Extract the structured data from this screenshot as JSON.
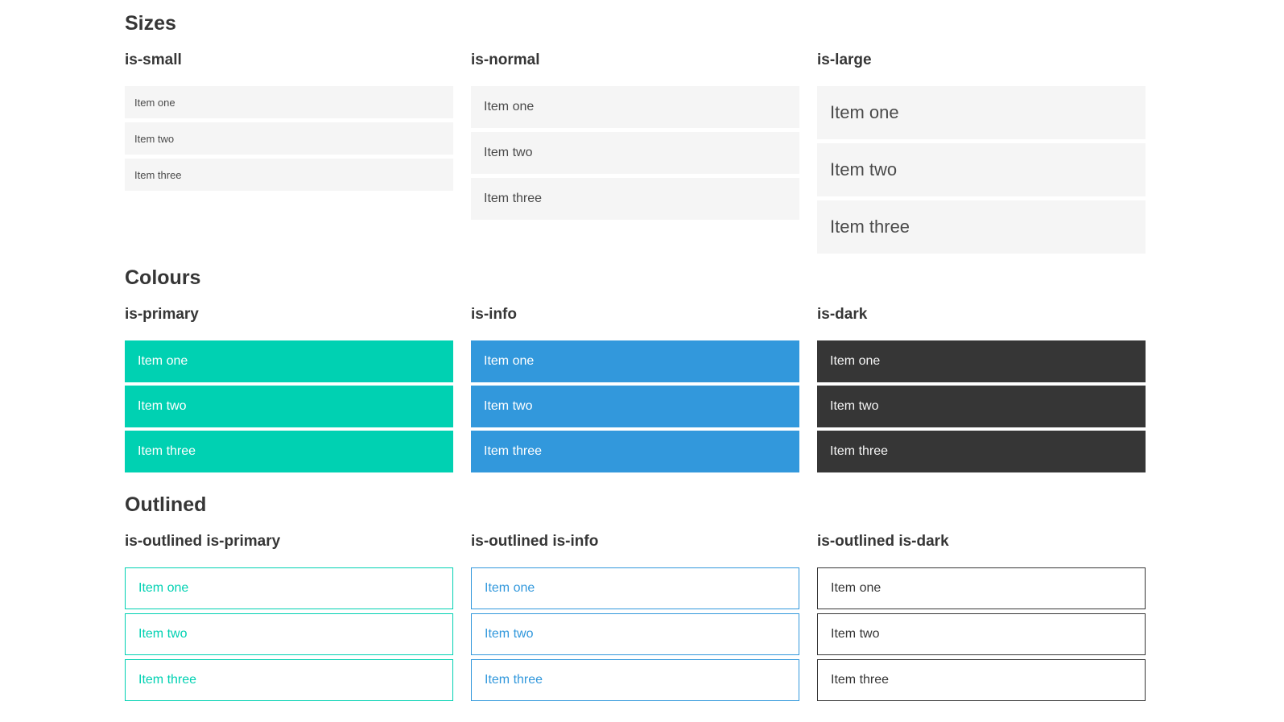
{
  "sections": [
    {
      "title": "Sizes",
      "columns": [
        {
          "heading": "is-small",
          "items": [
            "Item one",
            "Item two",
            "Item three"
          ]
        },
        {
          "heading": "is-normal",
          "items": [
            "Item one",
            "Item two",
            "Item three"
          ]
        },
        {
          "heading": "is-large",
          "items": [
            "Item one",
            "Item two",
            "Item three"
          ]
        }
      ]
    },
    {
      "title": "Colours",
      "columns": [
        {
          "heading": "is-primary",
          "items": [
            "Item one",
            "Item two",
            "Item three"
          ]
        },
        {
          "heading": "is-info",
          "items": [
            "Item one",
            "Item two",
            "Item three"
          ]
        },
        {
          "heading": "is-dark",
          "items": [
            "Item one",
            "Item two",
            "Item three"
          ]
        }
      ]
    },
    {
      "title": "Outlined",
      "columns": [
        {
          "heading": "is-outlined is-primary",
          "items": [
            "Item one",
            "Item two",
            "Item three"
          ]
        },
        {
          "heading": "is-outlined is-info",
          "items": [
            "Item one",
            "Item two",
            "Item three"
          ]
        },
        {
          "heading": "is-outlined is-dark",
          "items": [
            "Item one",
            "Item two",
            "Item three"
          ]
        }
      ]
    }
  ],
  "colors": {
    "primary": "#00d1b2",
    "info": "#3298dc",
    "dark": "#363636",
    "item_background": "#f5f5f5",
    "item_text": "#4a4a4a",
    "heading_text": "#363636"
  }
}
